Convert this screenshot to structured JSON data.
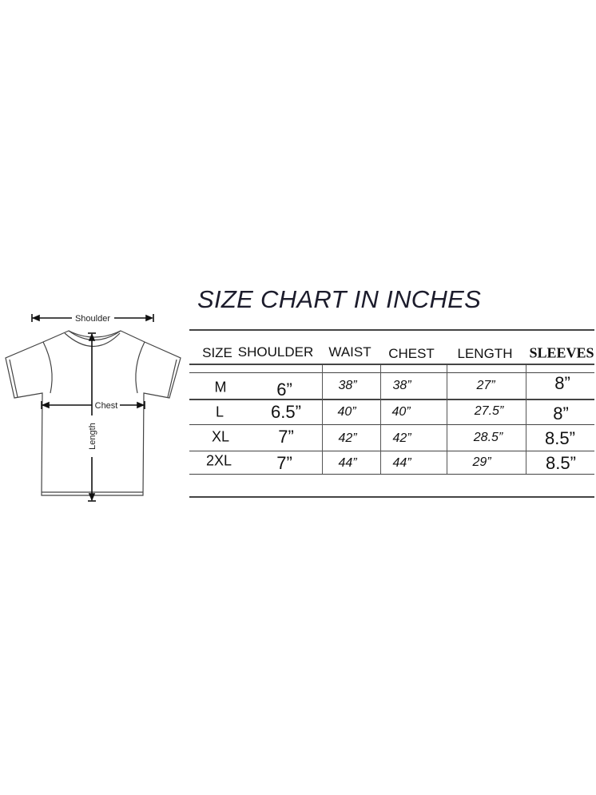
{
  "title": "SIZE CHART IN INCHES",
  "diagram": {
    "shoulder_label": "Shoulder",
    "chest_label": "Chest",
    "length_label": "Length"
  },
  "table": {
    "headers": [
      "SIZE",
      "SHOULDER",
      "WAIST",
      "CHEST",
      "LENGTH",
      "SLEEVES"
    ],
    "rows": [
      [
        "M",
        "6”",
        "38”",
        "38”",
        "27”",
        "8”"
      ],
      [
        "L",
        "6.5”",
        "40”",
        "40”",
        "27.5”",
        "8”"
      ],
      [
        "XL",
        "7”",
        "42”",
        "42”",
        "28.5”",
        "8.5”"
      ],
      [
        "2XL",
        "7”",
        "44”",
        "44”",
        "29”",
        "8.5”"
      ]
    ]
  }
}
